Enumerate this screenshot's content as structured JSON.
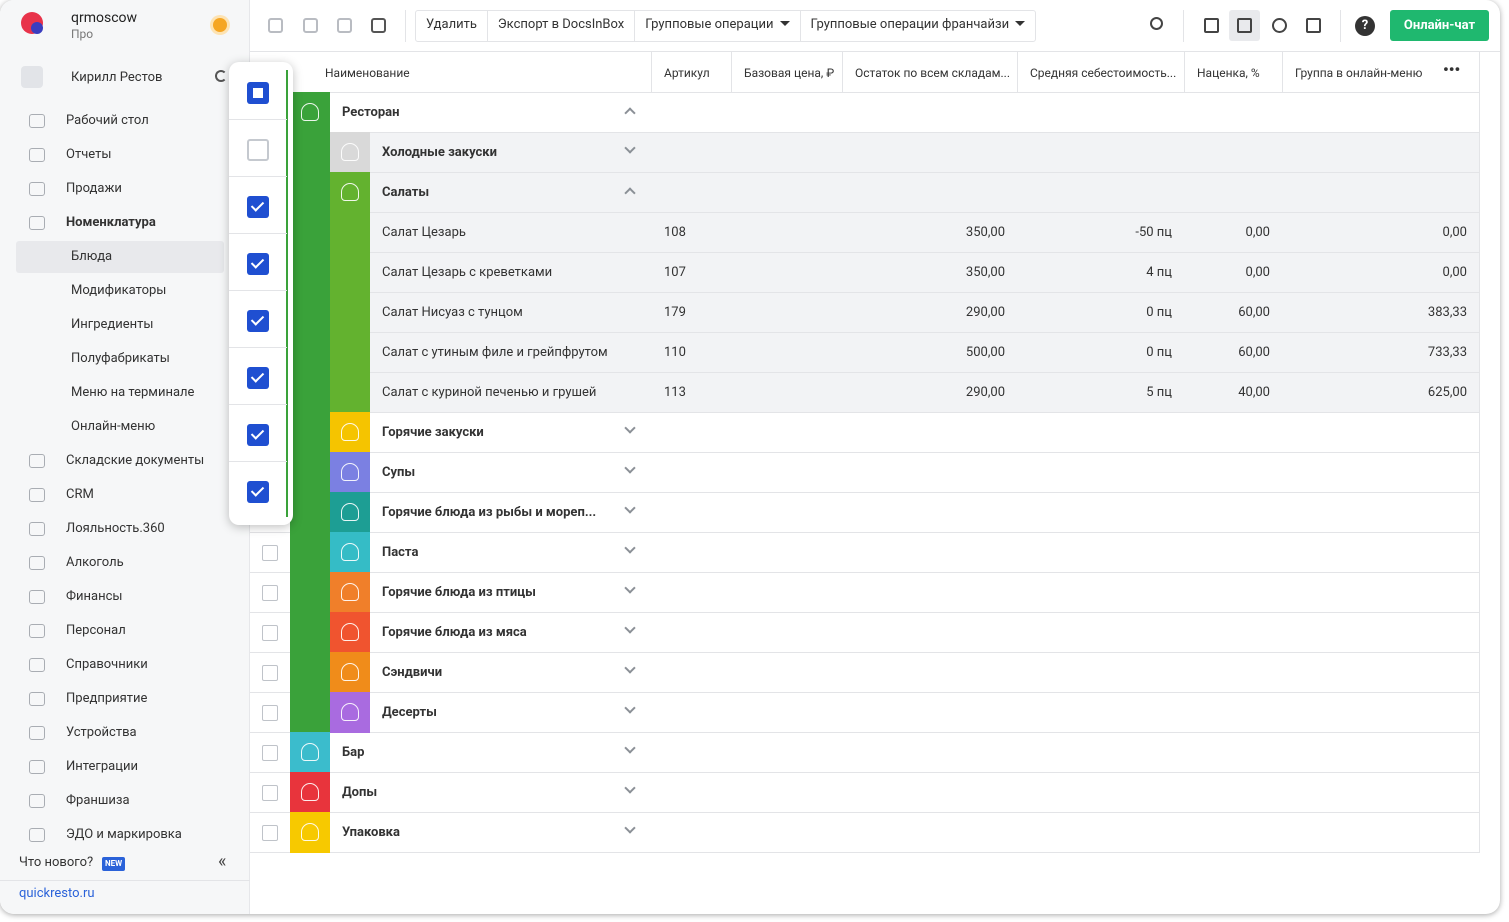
{
  "header": {
    "org": "qrmoscow",
    "plan": "Про",
    "user": "Кирилл Рестов"
  },
  "nav": [
    "Рабочий стол",
    "Отчеты",
    "Продажи",
    "Номенклатура"
  ],
  "subnav": [
    "Блюда",
    "Модификаторы",
    "Ингредиенты",
    "Полуфабрикаты",
    "Меню на терминале",
    "Онлайн-меню"
  ],
  "nav_more": [
    "Складские документы",
    "CRM",
    "Лояльность.360",
    "Алкоголь",
    "Финансы",
    "Персонал",
    "Справочники",
    "Предприятие",
    "Устройства",
    "Интеграции",
    "Франшиза",
    "ЭДО и маркировка"
  ],
  "footer": {
    "whats_new": "Что нового?",
    "badge": "NEW",
    "site": "quickresto.ru"
  },
  "toolbar": {
    "buttons": [
      "Удалить",
      "Экспорт в DocsInBox",
      "Групповые операции",
      "Групповые операции франчайзи"
    ],
    "chat": "Онлайн-чат"
  },
  "table": {
    "columns": [
      "Наименование",
      "Артикул",
      "Базовая цена, ₽",
      "Остаток по всем складам...",
      "Средняя себестоимость...",
      "Наценка, %",
      "Группа в онлайн-меню"
    ],
    "rows": [
      {
        "name": "Ресторан",
        "level": 0,
        "color": "#3aa23a",
        "expanded": true
      },
      {
        "name": "Холодные закуски",
        "level": 1,
        "color": "#d9d9d9",
        "expanded": false,
        "shaded": true
      },
      {
        "name": "Салаты",
        "level": 1,
        "color": "#63b22f",
        "expanded": true,
        "shaded": true
      },
      {
        "name": "Салат Цезарь",
        "level": 2,
        "shaded": true,
        "cells": [
          "108",
          "350,00",
          "-50 пц",
          "0,00",
          "0,00"
        ]
      },
      {
        "name": "Салат Цезарь с креветками",
        "level": 2,
        "shaded": true,
        "cells": [
          "107",
          "350,00",
          "4 пц",
          "0,00",
          "0,00"
        ]
      },
      {
        "name": "Салат Нисуаз с тунцом",
        "level": 2,
        "shaded": true,
        "cells": [
          "179",
          "290,00",
          "0 пц",
          "60,00",
          "383,33"
        ]
      },
      {
        "name": "Салат с утиным филе и грейпфрутом",
        "level": 2,
        "shaded": true,
        "cells": [
          "110",
          "500,00",
          "0 пц",
          "60,00",
          "733,33"
        ]
      },
      {
        "name": "Салат с куриной печенью и грушей",
        "level": 2,
        "shaded": true,
        "cells": [
          "113",
          "290,00",
          "5 пц",
          "40,00",
          "625,00"
        ]
      },
      {
        "name": "Горячие закуски",
        "level": 1,
        "color": "#f5c400",
        "expanded": false
      },
      {
        "name": "Супы",
        "level": 1,
        "color": "#7b80e2",
        "expanded": false
      },
      {
        "name": "Горячие блюда из рыбы и мореп...",
        "level": 1,
        "color": "#1d9e94",
        "expanded": false
      },
      {
        "name": "Паста",
        "level": 1,
        "color": "#35bcc6",
        "expanded": false
      },
      {
        "name": "Горячие блюда из птицы",
        "level": 1,
        "color": "#f07f2a",
        "expanded": false
      },
      {
        "name": "Горячие блюда из мяса",
        "level": 1,
        "color": "#f0542f",
        "expanded": false
      },
      {
        "name": "Сэндвичи",
        "level": 1,
        "color": "#f08c1a",
        "expanded": false
      },
      {
        "name": "Десерты",
        "level": 1,
        "color": "#a96be0",
        "expanded": false
      },
      {
        "name": "Бар",
        "level": 0,
        "color": "#3bbccc",
        "expanded": false
      },
      {
        "name": "Допы",
        "level": 0,
        "color": "#e8343c",
        "expanded": false
      },
      {
        "name": "Упаковка",
        "level": 0,
        "color": "#f7c900",
        "expanded": false
      }
    ]
  },
  "selection_popup": [
    "partial",
    "none",
    "checked",
    "checked",
    "checked",
    "checked",
    "checked",
    "checked"
  ]
}
